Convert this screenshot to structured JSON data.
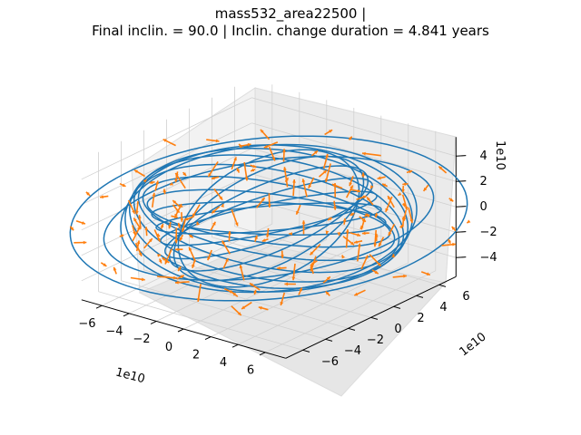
{
  "chart_data": {
    "type": "3d-line-quiver",
    "title_lines": [
      "mass532_area22500 |",
      "Final inclin. = 90.0 | Inclin. change duration = 4.841 years"
    ],
    "x_axis": {
      "ticks": [
        "−6",
        "−4",
        "−2",
        "0",
        "2",
        "4",
        "6"
      ],
      "offset_label": "1e10",
      "range": [
        -7.5,
        7.5
      ]
    },
    "y_axis": {
      "ticks": [
        "−6",
        "−4",
        "−2",
        "0",
        "2",
        "4",
        "6"
      ],
      "offset_label": "1e10",
      "range": [
        -7.5,
        7.5
      ]
    },
    "z_axis": {
      "ticks": [
        "−4",
        "−2",
        "0",
        "2",
        "4"
      ],
      "offset_label": "1e10",
      "range": [
        -5.5,
        5.5
      ]
    },
    "grid": true,
    "series": [
      {
        "kind": "orbit-line",
        "color": "#1f77b4"
      },
      {
        "kind": "quiver-arrows",
        "color": "#ff7f0e"
      }
    ]
  }
}
